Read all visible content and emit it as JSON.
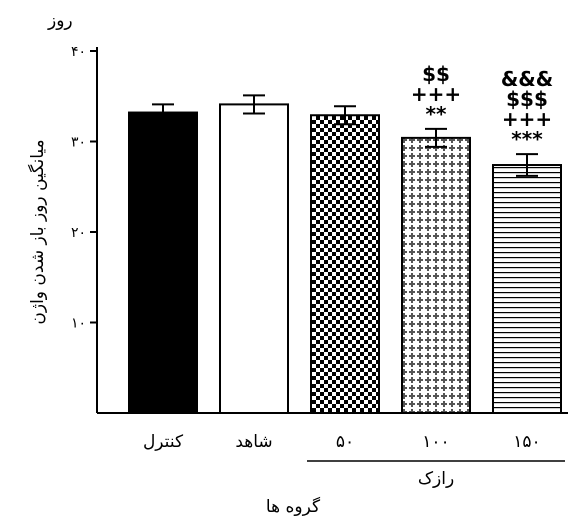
{
  "chart_data": {
    "type": "bar",
    "y_unit": "روز",
    "ylabel": "میانگین روز باز شدن واژن",
    "xlabel": "گروه ها",
    "group_label": "رازک",
    "ylim": [
      0,
      40
    ],
    "yticks": [
      {
        "value": 10,
        "label": "۱۰"
      },
      {
        "value": 20,
        "label": "۲۰"
      },
      {
        "value": 30,
        "label": "۳۰"
      },
      {
        "value": 40,
        "label": "۴۰"
      }
    ],
    "categories": [
      "کنترل",
      "شاهد",
      "۵۰",
      "۱۰۰",
      "۱۵۰"
    ],
    "values": [
      33.2,
      34.1,
      32.9,
      30.4,
      27.4
    ],
    "errors": [
      0.9,
      1.0,
      1.0,
      1.0,
      1.2
    ],
    "patterns": [
      "solid-black",
      "white",
      "checker",
      "cross-dots",
      "horizontal-lines"
    ],
    "annotations": [
      [],
      [],
      [],
      [
        "$$",
        "+++",
        "**"
      ],
      [
        "&&&",
        "$$$",
        "+++",
        "***"
      ]
    ],
    "grouped_categories": [
      2,
      3,
      4
    ],
    "grid": false,
    "legend": "none"
  }
}
